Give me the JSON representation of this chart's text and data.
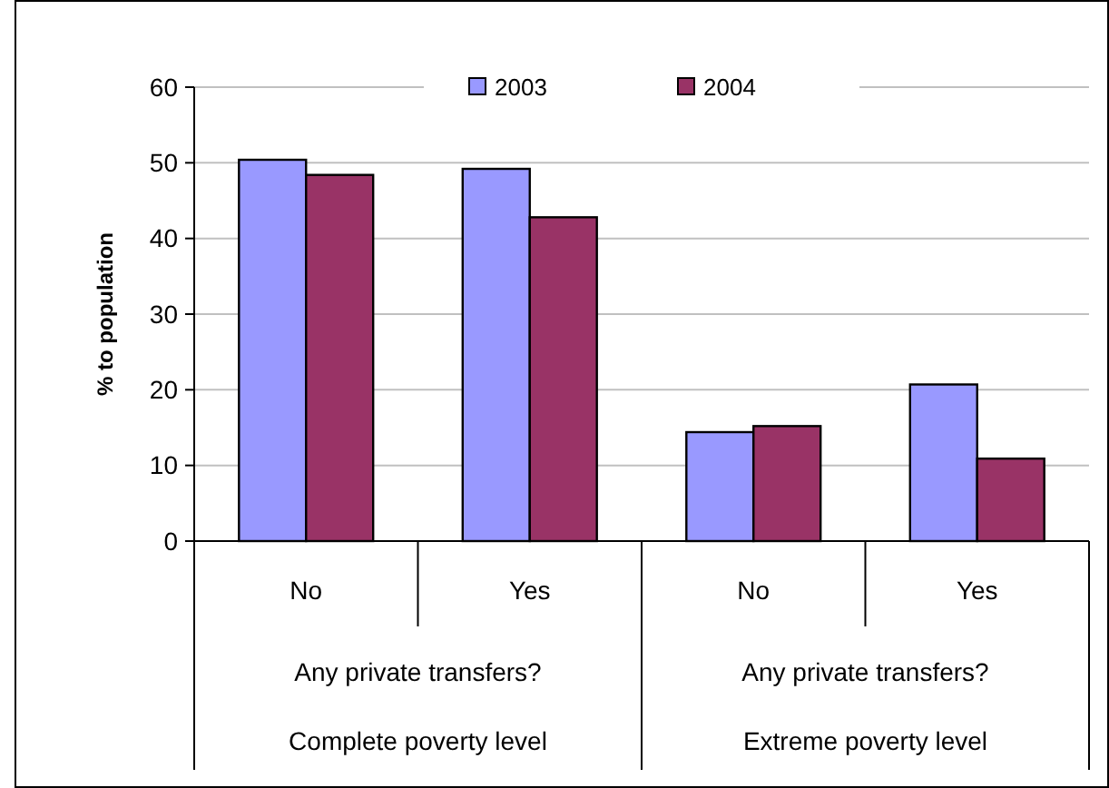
{
  "chart_data": {
    "type": "bar",
    "ylabel": "% to population",
    "categories": [
      "No",
      "Yes",
      "No",
      "Yes"
    ],
    "series": [
      {
        "name": "2003",
        "color": "#9999ff",
        "values": [
          50.4,
          49.2,
          14.4,
          20.7
        ]
      },
      {
        "name": "2004",
        "color": "#993366",
        "values": [
          48.4,
          42.8,
          15.2,
          10.9
        ]
      }
    ],
    "annotations": [
      "Any private transfers?",
      "Any private transfers?",
      "Complete poverty level",
      "Extreme poverty level"
    ],
    "ylim": [
      0,
      60
    ],
    "yticks": [
      0,
      10,
      20,
      30,
      40,
      50,
      60
    ],
    "grid": "y",
    "legend": "top"
  }
}
